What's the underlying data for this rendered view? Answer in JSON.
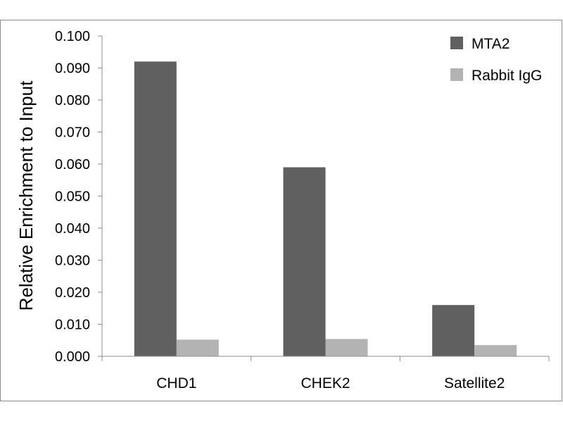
{
  "chart_data": {
    "type": "bar",
    "title": "",
    "xlabel": "",
    "ylabel": "Relative Enrichment to Input",
    "categories": [
      "CHD1",
      "CHEK2",
      "Satellite2"
    ],
    "series": [
      {
        "name": "MTA2",
        "color": "#606060",
        "values": [
          0.092,
          0.059,
          0.016
        ]
      },
      {
        "name": "Rabbit IgG",
        "color": "#b3b3b3",
        "values": [
          0.0052,
          0.0054,
          0.0035
        ]
      }
    ],
    "ylim": [
      0,
      0.1
    ],
    "yticks": [
      0.0,
      0.01,
      0.02,
      0.03,
      0.04,
      0.05,
      0.06,
      0.07,
      0.08,
      0.09,
      0.1
    ],
    "ytick_labels": [
      "0.000",
      "0.010",
      "0.020",
      "0.030",
      "0.040",
      "0.050",
      "0.060",
      "0.070",
      "0.080",
      "0.090",
      "0.100"
    ],
    "grid": false,
    "legend_position": "top-right"
  }
}
